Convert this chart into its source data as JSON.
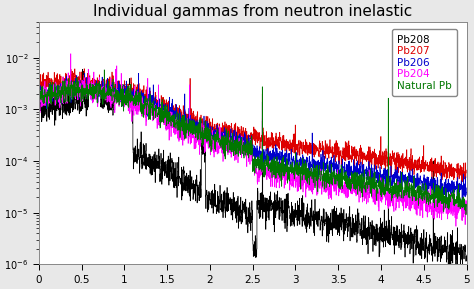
{
  "title": "Individual gammas from neutron inelastic",
  "xlim": [
    0,
    5
  ],
  "ylim": [
    1e-06,
    0.05
  ],
  "xticks": [
    0,
    0.5,
    1.0,
    1.5,
    2.0,
    2.5,
    3.0,
    3.5,
    4.0,
    4.5,
    5.0
  ],
  "legend_entries": [
    "Pb208",
    "Pb207",
    "Pb206",
    "Pb204",
    "Natural Pb"
  ],
  "legend_colors": [
    "black",
    "#dd0000",
    "#0000cc",
    "#ff00ff",
    "#007700"
  ],
  "background_color": "#e8e8e8",
  "plot_bg_color": "#ffffff",
  "title_fontsize": 11,
  "seed": 42
}
